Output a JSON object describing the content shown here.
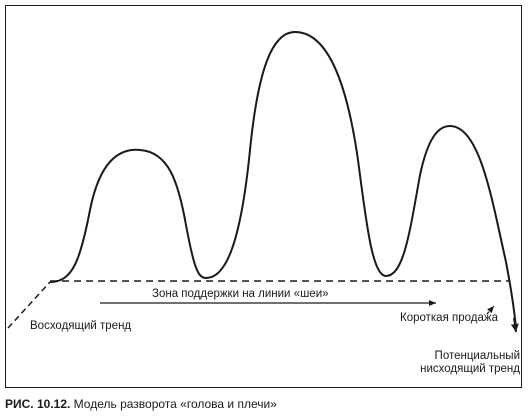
{
  "labels": {
    "support_zone": "Зона поддержки на линии «шеи»",
    "uptrend": "Восходящий тренд",
    "short_sale": "Короткая продажа",
    "potential_downtrend_line1": "Потенциальный",
    "potential_downtrend_line2": "нисходящий тренд"
  },
  "caption": {
    "number": "РИС. 10.12.",
    "text": "Модель разворота «голова и плечи»"
  },
  "colors": {
    "ink": "#1a1a1a",
    "background": "#ffffff"
  }
}
